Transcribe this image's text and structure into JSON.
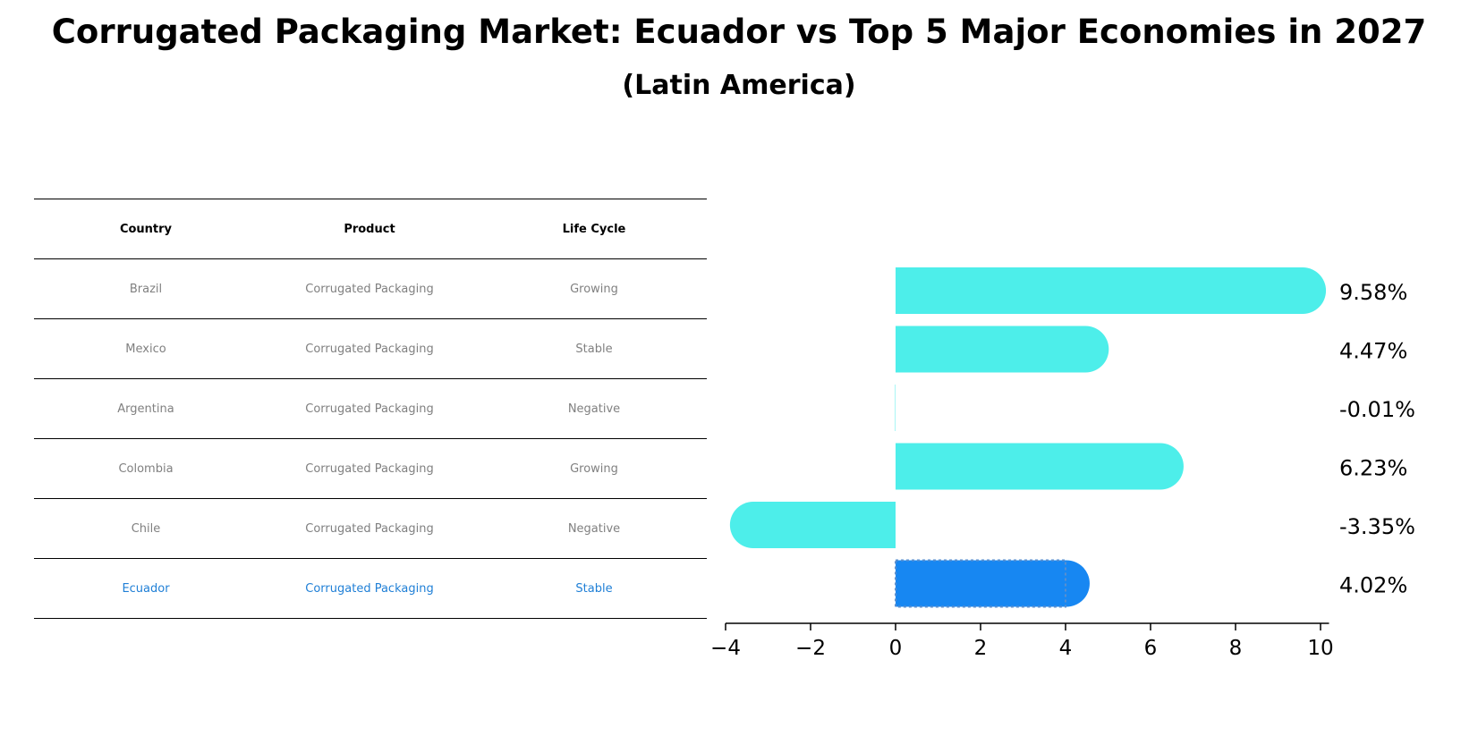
{
  "title": "Corrugated Packaging Market: Ecuador vs Top 5 Major Economies in 2027",
  "subtitle": "(Latin America)",
  "table": {
    "headers": [
      "Country",
      "Product",
      "Life Cycle"
    ],
    "rows": [
      {
        "country": "Brazil",
        "product": "Corrugated Packaging",
        "life_cycle": "Growing"
      },
      {
        "country": "Mexico",
        "product": "Corrugated Packaging",
        "life_cycle": "Stable"
      },
      {
        "country": "Argentina",
        "product": "Corrugated Packaging",
        "life_cycle": "Negative"
      },
      {
        "country": "Colombia",
        "product": "Corrugated Packaging",
        "life_cycle": "Growing"
      },
      {
        "country": "Chile",
        "product": "Corrugated Packaging",
        "life_cycle": "Negative"
      },
      {
        "country": "Ecuador",
        "product": "Corrugated Packaging",
        "life_cycle": "Stable"
      }
    ]
  },
  "chart_data": {
    "type": "bar",
    "orientation": "horizontal",
    "categories": [
      "Brazil",
      "Mexico",
      "Argentina",
      "Colombia",
      "Chile",
      "Ecuador"
    ],
    "values": [
      9.58,
      4.47,
      -0.01,
      6.23,
      -3.35,
      4.02
    ],
    "value_labels": [
      "9.58%",
      "4.47%",
      "-0.01%",
      "6.23%",
      "-3.35%",
      "4.02%"
    ],
    "highlight": "Ecuador",
    "xlim": [
      -4,
      10.2
    ],
    "xticks": [
      -4,
      -2,
      0,
      2,
      4,
      6,
      8,
      10
    ],
    "xtick_labels": [
      "−4",
      "−2",
      "0",
      "2",
      "4",
      "6",
      "8",
      "10"
    ],
    "colors": {
      "default": "#4deeea",
      "highlight": "#1787f2"
    }
  }
}
